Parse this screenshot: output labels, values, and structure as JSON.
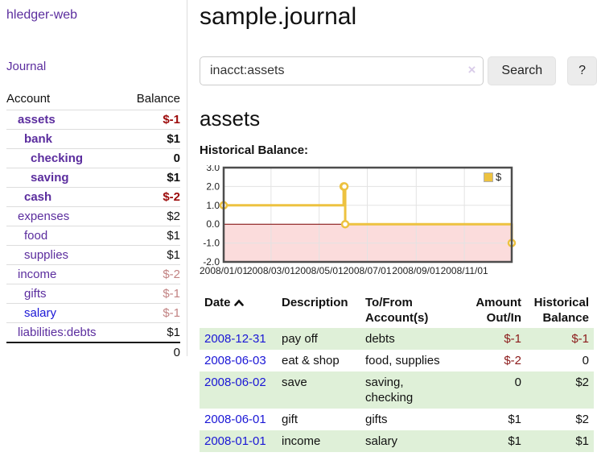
{
  "colors": {
    "link_purple": "#5b2d9e",
    "link_blue": "#1a16d6",
    "negative_strong": "#9c0a0a",
    "negative_soft": "#c28383",
    "row_green": "#dff0d8",
    "accent_gold": "#edc240"
  },
  "sidebar": {
    "app_title": "hledger-web",
    "journal_link": "Journal",
    "accounts": {
      "col_account": "Account",
      "col_balance": "Balance",
      "rows": [
        {
          "name": "assets",
          "depth": 1,
          "bold": true,
          "balance": "$-1",
          "balance_style": "neg",
          "link_style": "purple"
        },
        {
          "name": "bank",
          "depth": 2,
          "bold": true,
          "balance": "$1",
          "balance_style": "pos",
          "link_style": "purple"
        },
        {
          "name": "checking",
          "depth": 3,
          "bold": true,
          "balance": "0",
          "balance_style": "pos",
          "link_style": "purple"
        },
        {
          "name": "saving",
          "depth": 3,
          "bold": true,
          "balance": "$1",
          "balance_style": "pos",
          "link_style": "purple"
        },
        {
          "name": "cash",
          "depth": 2,
          "bold": true,
          "balance": "$-2",
          "balance_style": "neg",
          "link_style": "purple"
        },
        {
          "name": "expenses",
          "depth": 1,
          "bold": false,
          "balance": "$2",
          "balance_style": "pos",
          "link_style": "purple"
        },
        {
          "name": "food",
          "depth": 2,
          "bold": false,
          "balance": "$1",
          "balance_style": "pos",
          "link_style": "purple"
        },
        {
          "name": "supplies",
          "depth": 2,
          "bold": false,
          "balance": "$1",
          "balance_style": "pos",
          "link_style": "purple"
        },
        {
          "name": "income",
          "depth": 1,
          "bold": false,
          "balance": "$-2",
          "balance_style": "neg-soft",
          "link_style": "purple"
        },
        {
          "name": "gifts",
          "depth": 2,
          "bold": false,
          "balance": "$-1",
          "balance_style": "neg-soft",
          "link_style": "purple"
        },
        {
          "name": "salary",
          "depth": 2,
          "bold": false,
          "balance": "$-1",
          "balance_style": "neg-soft",
          "link_style": "blue"
        },
        {
          "name": "liabilities:debts",
          "depth": 1,
          "bold": false,
          "balance": "$1",
          "balance_style": "pos",
          "link_style": "purple"
        }
      ],
      "total": "0"
    }
  },
  "main": {
    "title": "sample.journal",
    "search": {
      "value": "inacct:assets",
      "clear": "×",
      "button": "Search",
      "help": "?"
    },
    "account_heading": "assets",
    "chart_label": "Historical Balance:"
  },
  "chart_data": {
    "type": "line",
    "title": "Historical Balance:",
    "legend": "$",
    "legend_position": "top-right",
    "grid": true,
    "xlim_days": [
      0,
      365
    ],
    "ylim": [
      -2,
      3
    ],
    "y_ticks": [
      3.0,
      2.0,
      1.0,
      0.0,
      -1.0,
      -2.0
    ],
    "x_tick_days": [
      0,
      60,
      121,
      182,
      244,
      305
    ],
    "x_tick_labels": [
      "2008/01/01",
      "2008/03/01",
      "2008/05/01",
      "2008/07/01",
      "2008/09/01",
      "2008/11/01"
    ],
    "negative_region_fill": "#fbdcdc",
    "zero_line_color": "#7a0000",
    "grid_color": "#e3e3e3",
    "border_color": "#4d4d4d",
    "series": [
      {
        "name": "$",
        "color": "#edc240",
        "step": "after",
        "points": [
          {
            "date": "2008-01-01",
            "day": 0,
            "value": 1
          },
          {
            "date": "2008-06-01",
            "day": 152,
            "value": 2
          },
          {
            "date": "2008-06-02",
            "day": 153,
            "value": 2
          },
          {
            "date": "2008-06-03",
            "day": 154,
            "value": 0
          },
          {
            "date": "2008-12-31",
            "day": 365,
            "value": -1
          }
        ]
      }
    ]
  },
  "transactions": {
    "columns": [
      "Date",
      "Description",
      "To/From Account(s)",
      "Amount Out/In",
      "Historical Balance"
    ],
    "rows": [
      {
        "date": "2008-12-31",
        "description": "pay off",
        "accounts": "debts",
        "amount": "$-1",
        "balance": "$-1"
      },
      {
        "date": "2008-06-03",
        "description": "eat & shop",
        "accounts": "food, supplies",
        "amount": "$-2",
        "balance": "0"
      },
      {
        "date": "2008-06-02",
        "description": "save",
        "accounts": "saving, checking",
        "amount": "0",
        "balance": "$2"
      },
      {
        "date": "2008-06-01",
        "description": "gift",
        "accounts": "gifts",
        "amount": "$1",
        "balance": "$2"
      },
      {
        "date": "2008-01-01",
        "description": "income",
        "accounts": "salary",
        "amount": "$1",
        "balance": "$1"
      }
    ]
  }
}
